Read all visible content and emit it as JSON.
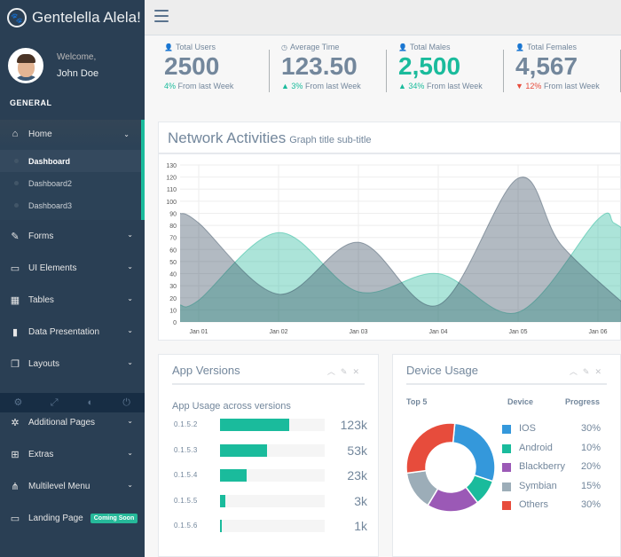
{
  "brand": {
    "title": "Gentelella Alela!",
    "logo_icon": "paw-icon"
  },
  "profile": {
    "welcome": "Welcome,",
    "name": "John Doe"
  },
  "sidebar": {
    "section_title": "GENERAL",
    "items": [
      {
        "label": "Home",
        "icon": "home-icon",
        "glyph": "⌂"
      },
      {
        "label": "Forms",
        "icon": "edit-icon",
        "glyph": "✎"
      },
      {
        "label": "UI Elements",
        "icon": "desktop-icon",
        "glyph": "▭"
      },
      {
        "label": "Tables",
        "icon": "table-icon",
        "glyph": "▦"
      },
      {
        "label": "Data Presentation",
        "icon": "bar-chart-icon",
        "glyph": "▮"
      },
      {
        "label": "Layouts",
        "icon": "clone-icon",
        "glyph": "❐"
      }
    ],
    "sub_items": [
      "Dashboard",
      "Dashboard2",
      "Dashboard3"
    ],
    "lower_items": [
      {
        "label": "Additional Pages",
        "icon": "bug-icon",
        "glyph": "✲"
      },
      {
        "label": "Extras",
        "icon": "windows-icon",
        "glyph": "⊞"
      },
      {
        "label": "Multilevel Menu",
        "icon": "sitemap-icon",
        "glyph": "⋔"
      },
      {
        "label": "Landing Page",
        "icon": "laptop-icon",
        "glyph": "▭"
      }
    ],
    "coming_soon": "Coming Soon",
    "footer_icons": [
      "settings-icon",
      "fullscreen-icon",
      "lock-icon",
      "logout-icon"
    ]
  },
  "tiles": [
    {
      "label": "Total Users",
      "icon": "user-icon",
      "value": "2500",
      "change": "4%",
      "direction": "none",
      "suffix": " From last Week"
    },
    {
      "label": "Average Time",
      "icon": "clock-icon",
      "value": "123.50",
      "change": "3%",
      "direction": "up",
      "suffix": " From last Week"
    },
    {
      "label": "Total Males",
      "icon": "user-icon",
      "value": "2,500",
      "change": "34%",
      "direction": "up",
      "suffix": " From last Week",
      "highlight": true
    },
    {
      "label": "Total Females",
      "icon": "user-icon",
      "value": "4,567",
      "change": "12%",
      "direction": "down",
      "suffix": " From last Week"
    }
  ],
  "network": {
    "title": "Network Activities",
    "subtitle": "Graph title sub-title"
  },
  "chart_data": {
    "type": "area",
    "title": "Network Activities",
    "subtitle": "Graph title sub-title",
    "x_ticks": [
      "Jan 01",
      "Jan 02",
      "Jan 03",
      "Jan 04",
      "Jan 05",
      "Jan 06"
    ],
    "ylim": [
      0,
      130
    ],
    "y_ticks": [
      0,
      10,
      20,
      30,
      40,
      50,
      60,
      70,
      80,
      90,
      100,
      110,
      120,
      130
    ],
    "grid": true,
    "series": [
      {
        "color": "#96CA59",
        "x": [
          0,
          1,
          2,
          3,
          4,
          5,
          5.2,
          5.4,
          5.55
        ],
        "values": [
          18,
          74,
          25,
          40,
          8,
          85,
          82,
          72,
          60
        ]
      },
      {
        "color": "#26B99A",
        "x": [
          0,
          1,
          2,
          3,
          4,
          4.55,
          5.5
        ],
        "values": [
          82,
          23,
          66,
          14,
          119,
          63,
          5
        ]
      }
    ]
  },
  "app_versions": {
    "title": "App Versions",
    "subtitle": "App Usage across versions",
    "rows": [
      {
        "version": "0.1.5.2",
        "count": "123k",
        "fill": 0.66
      },
      {
        "version": "0.1.5.3",
        "count": "53k",
        "fill": 0.45
      },
      {
        "version": "0.1.5.4",
        "count": "23k",
        "fill": 0.25
      },
      {
        "version": "0.1.5.5",
        "count": "3k",
        "fill": 0.05
      },
      {
        "version": "0.1.5.6",
        "count": "1k",
        "fill": 0.02
      }
    ]
  },
  "device_usage": {
    "title": "Device Usage",
    "top_label": "Top 5",
    "device_label": "Device",
    "progress_label": "Progress",
    "devices": [
      {
        "name": "IOS",
        "percent": "30%",
        "color": "#3498db",
        "value": 30
      },
      {
        "name": "Android",
        "percent": "10%",
        "color": "#1abb9c",
        "value": 10
      },
      {
        "name": "Blackberry",
        "percent": "20%",
        "color": "#9b59b6",
        "value": 20
      },
      {
        "name": "Symbian",
        "percent": "15%",
        "color": "#9cadb8",
        "value": 15
      },
      {
        "name": "Others",
        "percent": "30%",
        "color": "#e74c3c",
        "value": 30
      }
    ]
  },
  "panel_tools": [
    "chevron-up-icon",
    "wrench-icon",
    "close-icon"
  ]
}
